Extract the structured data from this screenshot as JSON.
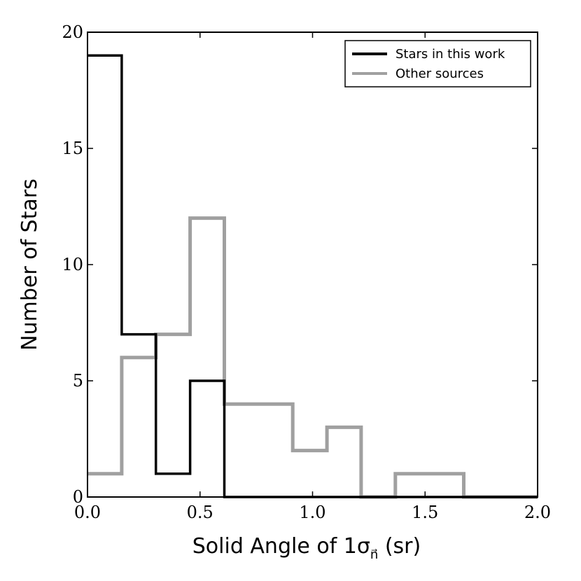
{
  "chart_data": {
    "type": "histogram",
    "xlabel": "Solid Angle of 1σ",
    "xlabel_subscript": "n⃗",
    "xlabel_unit": " (sr)",
    "ylabel": "Number of Stars",
    "xlim": [
      0.0,
      2.0
    ],
    "ylim": [
      0,
      20
    ],
    "x_ticks": [
      0.0,
      0.5,
      1.0,
      1.5,
      2.0
    ],
    "x_tick_labels": [
      "0.0",
      "0.5",
      "1.0",
      "1.5",
      "2.0"
    ],
    "y_ticks": [
      0,
      5,
      10,
      15,
      20
    ],
    "y_tick_labels": [
      "0",
      "5",
      "10",
      "15",
      "20"
    ],
    "bin_edges": [
      0.0,
      0.152,
      0.304,
      0.456,
      0.608,
      0.76,
      0.912,
      1.064,
      1.216,
      1.368,
      1.52,
      1.672,
      2.0
    ],
    "legend_position": "top-right",
    "grid": false,
    "series": [
      {
        "name": "Stars in this work",
        "color": "#000000",
        "values": [
          19,
          7,
          1,
          5,
          0,
          0,
          0,
          0,
          0,
          0,
          0,
          0
        ]
      },
      {
        "name": "Other sources",
        "color": "#a0a0a0",
        "values": [
          1,
          6,
          7,
          12,
          4,
          4,
          2,
          3,
          0,
          1,
          1,
          0
        ]
      }
    ]
  }
}
